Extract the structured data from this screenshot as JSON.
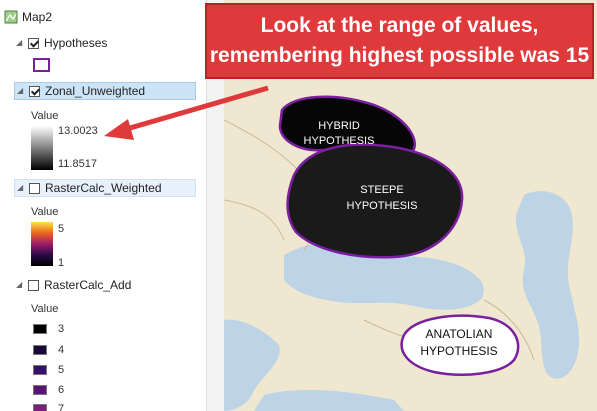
{
  "toc": {
    "map_name": "Map2",
    "layers": [
      {
        "name": "Hypotheses"
      },
      {
        "name": "Zonal_Unweighted",
        "value_label": "Value",
        "max": "13.0023",
        "min": "11.8517"
      },
      {
        "name": "RasterCalc_Weighted",
        "value_label": "Value",
        "max": "5",
        "min": "1"
      },
      {
        "name": "RasterCalc_Add",
        "value_label": "Value",
        "swatches": [
          {
            "label": "3",
            "color": "#000000"
          },
          {
            "label": "4",
            "color": "#1a0a3a"
          },
          {
            "label": "5",
            "color": "#341068"
          },
          {
            "label": "6",
            "color": "#5a1476"
          },
          {
            "label": "7",
            "color": "#7a1f7e"
          }
        ]
      }
    ]
  },
  "callout": {
    "line1": "Look at the range of values,",
    "line2": "remembering highest possible was 15"
  },
  "map": {
    "hypotheses": [
      {
        "line1": "HYBRID",
        "line2": "HYPOTHESIS"
      },
      {
        "line1": "STEEPE",
        "line2": "HYPOTHESIS"
      },
      {
        "line1": "ANATOLIAN",
        "line2": "HYPOTHESIS"
      }
    ]
  }
}
